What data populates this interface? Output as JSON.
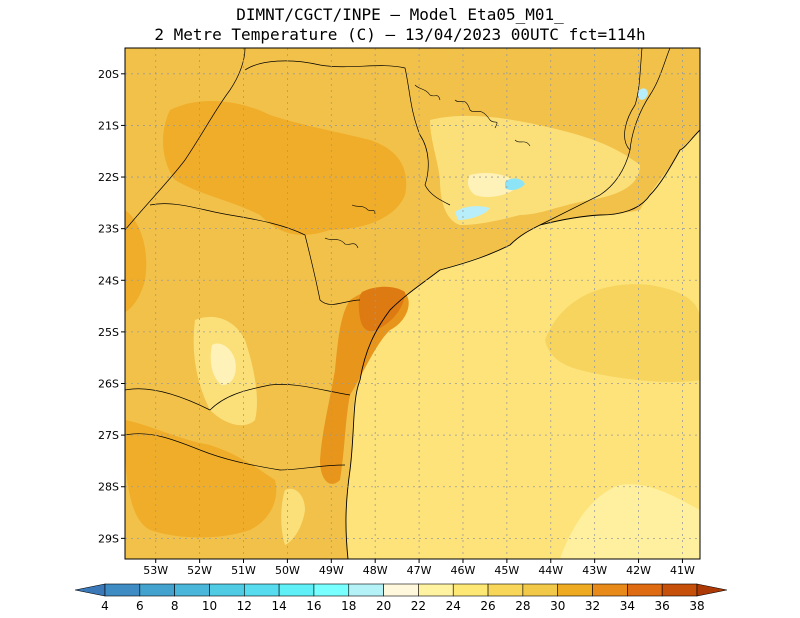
{
  "title": {
    "line1": "DIMNT/CGCT/INPE –  Model Eta05_M01_",
    "line2": "2 Metre Temperature (C) –  13/04/2023 00UTC fct=114h"
  },
  "axes": {
    "lat_labels": [
      "20S",
      "21S",
      "22S",
      "23S",
      "24S",
      "25S",
      "26S",
      "27S",
      "28S",
      "29S"
    ],
    "lon_labels": [
      "53W",
      "52W",
      "51W",
      "50W",
      "49W",
      "48W",
      "47W",
      "46W",
      "45W",
      "44W",
      "43W",
      "42W",
      "41W"
    ]
  },
  "colorbar": {
    "labels": [
      "4",
      "6",
      "8",
      "10",
      "12",
      "14",
      "16",
      "18",
      "20",
      "22",
      "24",
      "26",
      "28",
      "30",
      "32",
      "34",
      "36",
      "38"
    ],
    "colors": [
      "#3a78b8",
      "#3f8cc4",
      "#44a2cf",
      "#4ab7da",
      "#4fcbe4",
      "#56dcee",
      "#5ef0f6",
      "#78ffff",
      "#b4f2f8",
      "#fff8dc",
      "#fff2a0",
      "#fde775",
      "#f8d65a",
      "#f2c848",
      "#eeaa20",
      "#e88a1a",
      "#de6a12",
      "#c64f0a",
      "#ad3a06"
    ]
  },
  "map_colors": {
    "land": "#f2c14a",
    "inland_warm": "#f0ad2a",
    "coast_warm": "#e8951c",
    "hot_spot": "#dd7a12",
    "coast_cool": "#fbe07a",
    "pale": "#fff2b8",
    "sea": "#fde37a",
    "sea_light": "#fff0a0",
    "sea_deep": "#f6d45e",
    "cold": "#b7eefa",
    "cold_strong": "#8ee4f7"
  }
}
